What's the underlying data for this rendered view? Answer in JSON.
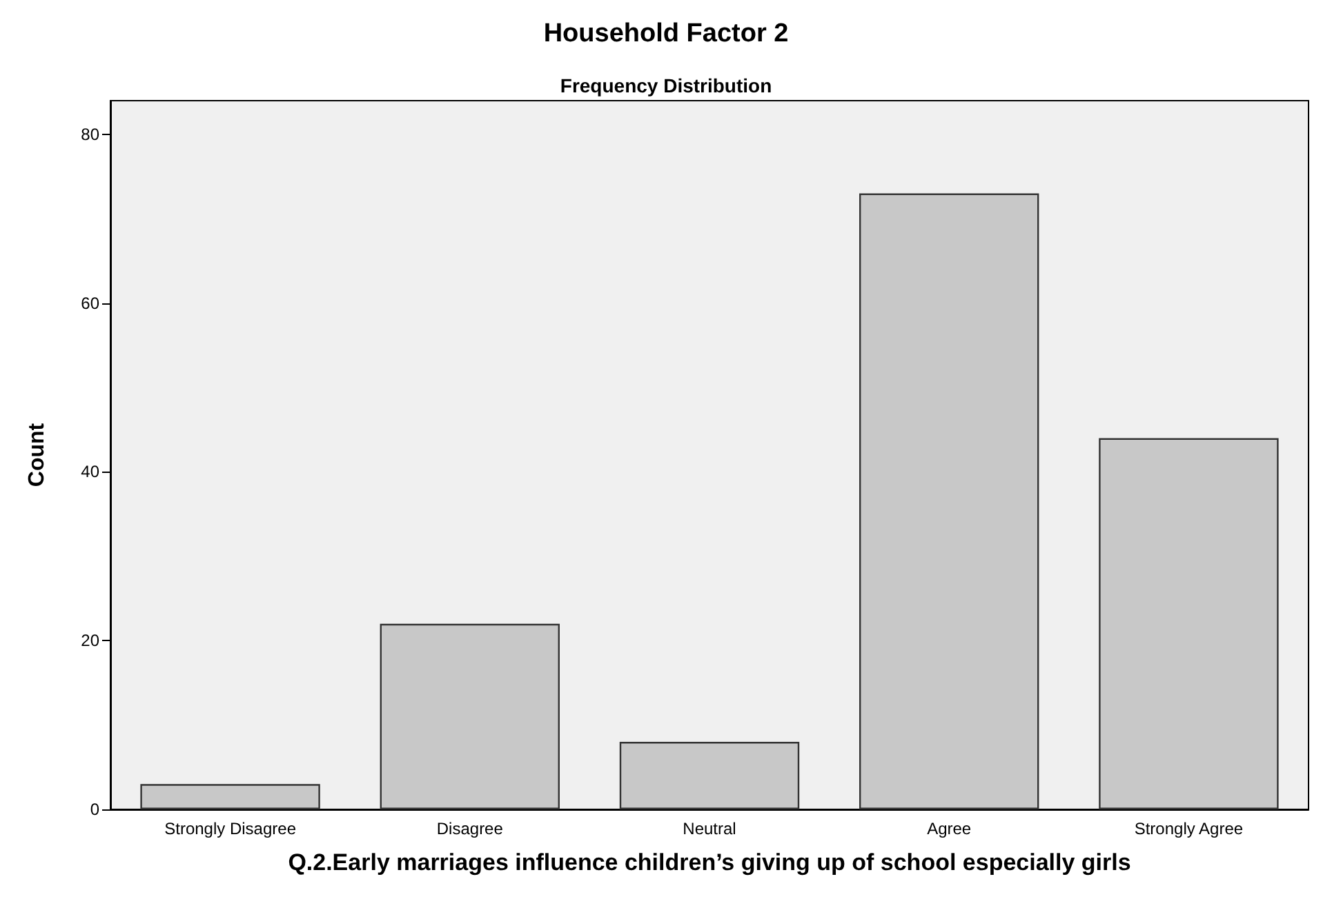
{
  "chart_data": {
    "type": "bar",
    "title": "Household Factor 2",
    "subtitle": "Frequency Distribution",
    "xlabel": "Q.2.Early marriages influence children’s giving up of school especially girls",
    "ylabel": "Count",
    "categories": [
      "Strongly Disagree",
      "Disagree",
      "Neutral",
      "Agree",
      "Strongly Agree"
    ],
    "values": [
      3,
      22,
      8,
      73,
      44
    ],
    "color": "#c8c8c8",
    "ylim": [
      0,
      84
    ],
    "yticks": [
      0,
      20,
      40,
      60,
      80
    ],
    "grid": false
  }
}
